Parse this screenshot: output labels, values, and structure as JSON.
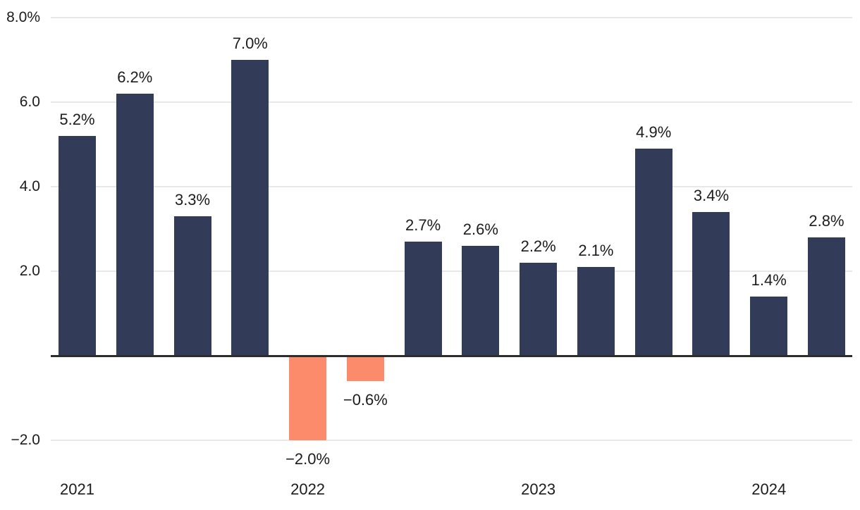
{
  "chart_data": {
    "type": "bar",
    "title": "",
    "unit": "%",
    "grid": "horizontal",
    "legend": "none",
    "ylim": [
      -2.6,
      8.4
    ],
    "bars": [
      {
        "year": "2021",
        "value": 5.2,
        "label": "5.2%"
      },
      {
        "year": "2021",
        "value": 6.2,
        "label": "6.2%"
      },
      {
        "year": "2021",
        "value": 3.3,
        "label": "3.3%"
      },
      {
        "year": "2021",
        "value": 7.0,
        "label": "7.0%"
      },
      {
        "year": "2022",
        "value": -2.0,
        "label": "−2.0%"
      },
      {
        "year": "2022",
        "value": -0.6,
        "label": "−0.6%"
      },
      {
        "year": "2022",
        "value": 2.7,
        "label": "2.7%"
      },
      {
        "year": "2022",
        "value": 2.6,
        "label": "2.6%"
      },
      {
        "year": "2023",
        "value": 2.2,
        "label": "2.2%"
      },
      {
        "year": "2023",
        "value": 2.1,
        "label": "2.1%"
      },
      {
        "year": "2023",
        "value": 4.9,
        "label": "4.9%"
      },
      {
        "year": "2023",
        "value": 3.4,
        "label": "3.4%"
      },
      {
        "year": "2024",
        "value": 1.4,
        "label": "1.4%"
      },
      {
        "year": "2024",
        "value": 2.8,
        "label": "2.8%"
      }
    ],
    "x_ticks": [
      {
        "label": "2021",
        "bar_index": 0
      },
      {
        "label": "2022",
        "bar_index": 4
      },
      {
        "label": "2023",
        "bar_index": 8
      },
      {
        "label": "2024",
        "bar_index": 12
      }
    ],
    "y_ticks": [
      {
        "value": 8.0,
        "label": "8.0%"
      },
      {
        "value": 6.0,
        "label": "6.0"
      },
      {
        "value": 4.0,
        "label": "4.0"
      },
      {
        "value": 2.0,
        "label": "2.0"
      },
      {
        "value": -2.0,
        "label": "−2.0"
      }
    ],
    "colors": {
      "positive": "#323c58",
      "negative": "#fc8b6c",
      "gridline": "#e8e8e8",
      "zero_line": "#2d2d2d",
      "text": "#1c1c1c",
      "background": "#ffffff"
    }
  }
}
